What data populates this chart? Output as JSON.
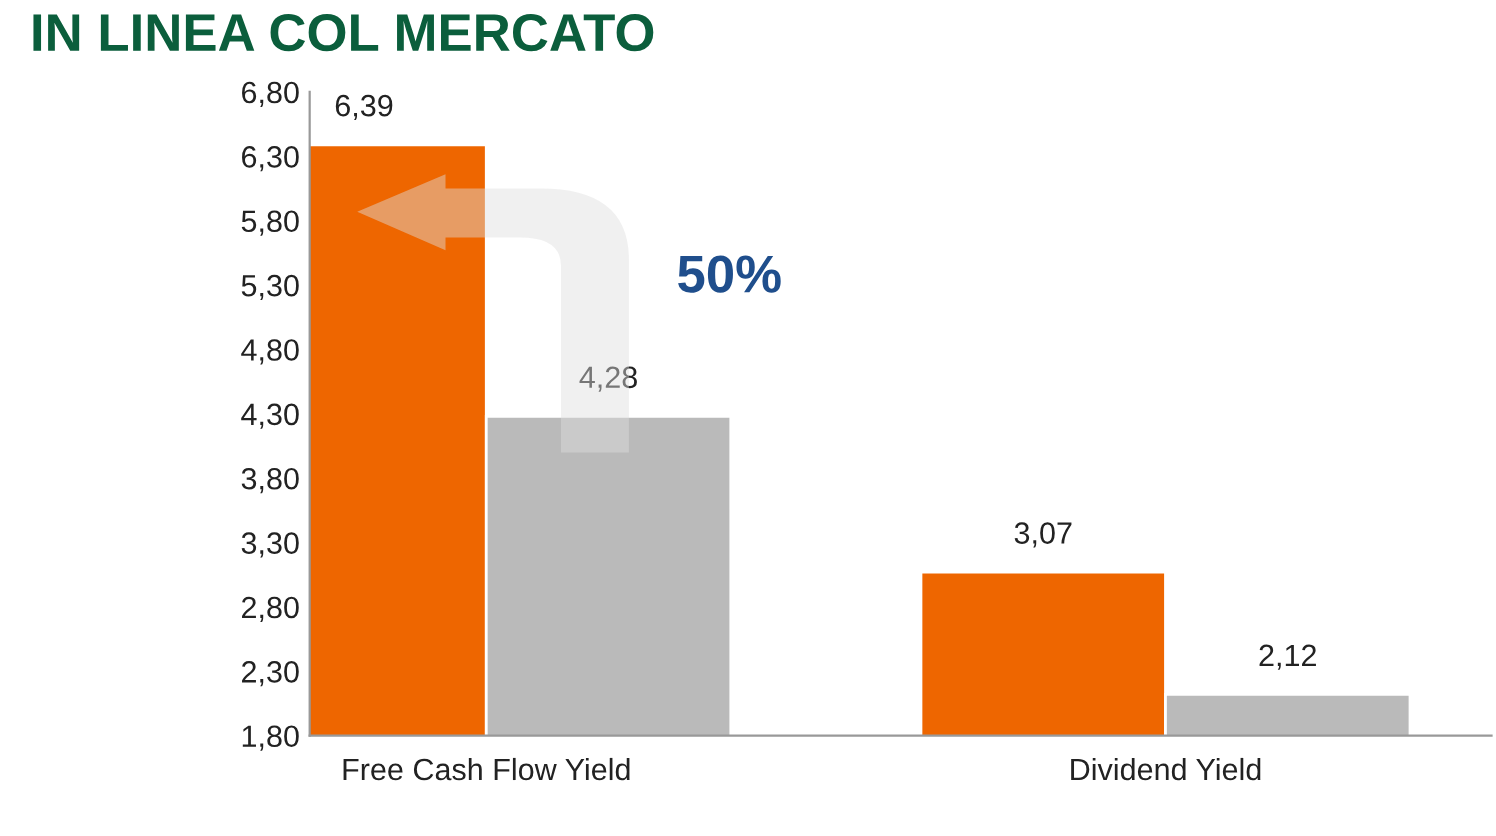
{
  "chart_data": {
    "type": "bar",
    "title": "IN LINEA COL MERCATO",
    "categories": [
      "Free Cash Flow Yield",
      "Dividend Yield"
    ],
    "series": [
      {
        "color": "#ee6600",
        "values": [
          6.39,
          3.07
        ],
        "value_labels": [
          "6,39",
          "3,07"
        ]
      },
      {
        "color": "#bababa",
        "values": [
          4.28,
          2.12
        ],
        "value_labels": [
          "4,28",
          "2,12"
        ]
      }
    ],
    "ylim": [
      1.8,
      6.8
    ],
    "yticks": [
      {
        "value": 1.8,
        "label": "1,80"
      },
      {
        "value": 2.3,
        "label": "2,30"
      },
      {
        "value": 2.8,
        "label": "2,80"
      },
      {
        "value": 3.3,
        "label": "3,30"
      },
      {
        "value": 3.8,
        "label": "3,80"
      },
      {
        "value": 4.3,
        "label": "4,30"
      },
      {
        "value": 4.8,
        "label": "4,80"
      },
      {
        "value": 5.3,
        "label": "5,30"
      },
      {
        "value": 5.8,
        "label": "5,80"
      },
      {
        "value": 6.3,
        "label": "6,30"
      },
      {
        "value": 6.8,
        "label": "6,80"
      }
    ],
    "annotations": [
      "50%"
    ],
    "grid": false,
    "legend": false
  }
}
